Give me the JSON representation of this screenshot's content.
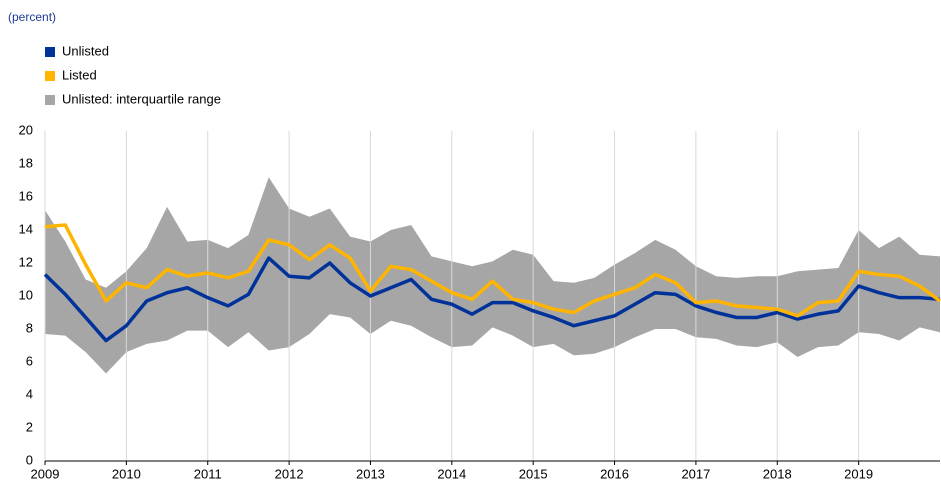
{
  "chart_data": {
    "type": "line",
    "subtitle": "(percent)",
    "x": [
      2009,
      2009.25,
      2009.5,
      2009.75,
      2010,
      2010.25,
      2010.5,
      2010.75,
      2011,
      2011.25,
      2011.5,
      2011.75,
      2012,
      2012.25,
      2012.5,
      2012.75,
      2013,
      2013.25,
      2013.5,
      2013.75,
      2014,
      2014.25,
      2014.5,
      2014.75,
      2015,
      2015.25,
      2015.5,
      2015.75,
      2016,
      2016.25,
      2016.5,
      2016.75,
      2017,
      2017.25,
      2017.5,
      2017.75,
      2018,
      2018.25,
      2018.5,
      2018.75,
      2019,
      2019.25,
      2019.5,
      2019.75,
      2020
    ],
    "series": [
      {
        "name": "Unlisted",
        "color": "#003299",
        "values": [
          11.3,
          10.1,
          8.7,
          7.3,
          8.2,
          9.7,
          10.2,
          10.5,
          9.9,
          9.4,
          10.1,
          12.3,
          11.2,
          11.1,
          12.0,
          10.8,
          10.0,
          10.5,
          11.0,
          9.8,
          9.5,
          8.9,
          9.6,
          9.6,
          9.1,
          8.7,
          8.2,
          8.5,
          8.8,
          9.5,
          10.2,
          10.1,
          9.4,
          9.0,
          8.7,
          8.7,
          9.0,
          8.6,
          8.9,
          9.1,
          10.6,
          10.2,
          9.9,
          9.9,
          9.8
        ]
      },
      {
        "name": "Listed",
        "color": "#ffb400",
        "values": [
          14.2,
          14.3,
          11.9,
          9.7,
          10.8,
          10.5,
          11.6,
          11.2,
          11.4,
          11.1,
          11.5,
          13.4,
          13.1,
          12.2,
          13.1,
          12.3,
          10.3,
          11.8,
          11.6,
          10.9,
          10.2,
          9.8,
          10.9,
          9.8,
          9.6,
          9.2,
          9.0,
          9.7,
          10.1,
          10.5,
          11.3,
          10.8,
          9.6,
          9.7,
          9.4,
          9.3,
          9.2,
          8.8,
          9.6,
          9.7,
          11.5,
          11.3,
          11.2,
          10.6,
          9.7
        ]
      },
      {
        "name": "Unlisted: interquartile range",
        "color": "#a6a6a6",
        "upper": [
          15.2,
          13.3,
          11.0,
          10.5,
          11.5,
          12.9,
          15.4,
          13.3,
          13.4,
          12.9,
          13.7,
          17.2,
          15.3,
          14.8,
          15.3,
          13.6,
          13.3,
          14.0,
          14.3,
          12.4,
          12.1,
          11.8,
          12.1,
          12.8,
          12.5,
          10.9,
          10.8,
          11.1,
          11.9,
          12.6,
          13.4,
          12.8,
          11.8,
          11.2,
          11.1,
          11.2,
          11.2,
          11.5,
          11.6,
          11.7,
          14.0,
          12.9,
          13.6,
          12.5,
          12.4
        ],
        "lower": [
          7.7,
          7.6,
          6.6,
          5.3,
          6.6,
          7.1,
          7.3,
          7.9,
          7.9,
          6.9,
          7.8,
          6.7,
          6.9,
          7.7,
          8.9,
          8.7,
          7.7,
          8.5,
          8.2,
          7.5,
          6.9,
          7.0,
          8.1,
          7.6,
          6.9,
          7.1,
          6.4,
          6.5,
          6.9,
          7.5,
          8.0,
          8.0,
          7.5,
          7.4,
          7.0,
          6.9,
          7.2,
          6.3,
          6.9,
          7.0,
          7.8,
          7.7,
          7.3,
          8.1,
          7.8
        ]
      }
    ],
    "xlim": [
      2009,
      2020
    ],
    "xticks": [
      2009,
      2010,
      2011,
      2012,
      2013,
      2014,
      2015,
      2016,
      2017,
      2018,
      2019
    ],
    "ylim": [
      0,
      20
    ],
    "yticks": [
      0,
      2,
      4,
      6,
      8,
      10,
      12,
      14,
      16,
      18,
      20
    ],
    "grid": "x"
  }
}
